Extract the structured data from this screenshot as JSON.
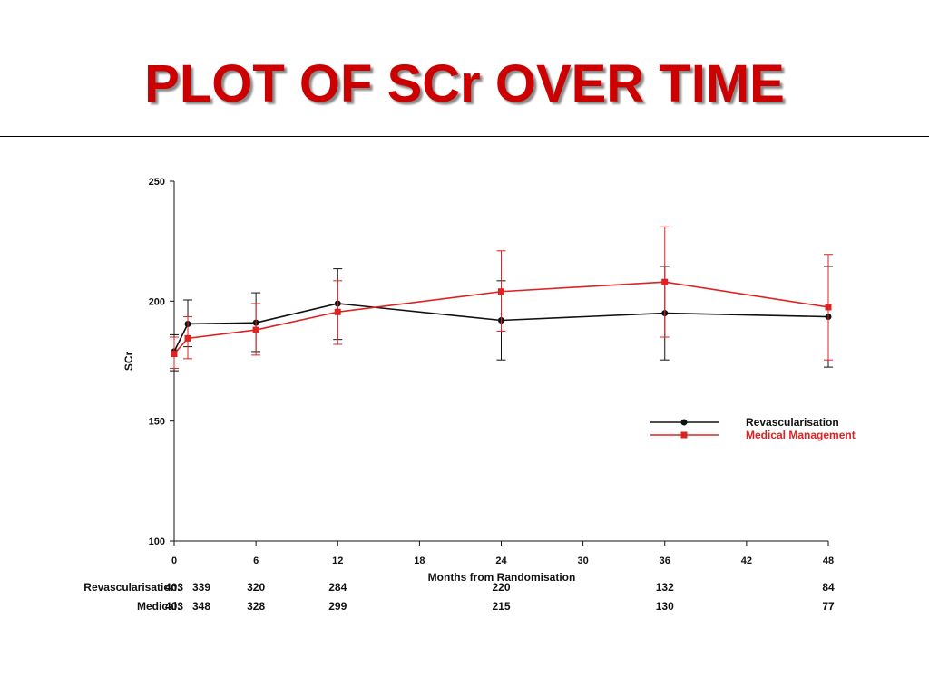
{
  "page": {
    "title": "PLOT OF SCr OVER TIME"
  },
  "chart_data": {
    "type": "line",
    "title": "",
    "xlabel": "Months from Randomisation",
    "ylabel": "SCr",
    "xlim": [
      0,
      48
    ],
    "ylim": [
      100,
      250
    ],
    "x_ticks": [
      0,
      6,
      12,
      18,
      24,
      30,
      36,
      42,
      48
    ],
    "y_ticks": [
      100,
      150,
      200,
      250
    ],
    "grid": false,
    "legend_position": "right",
    "series": [
      {
        "name": "Revascularisation",
        "color": "#111111",
        "marker": "circle",
        "x": [
          0,
          1,
          6,
          12,
          24,
          36,
          48
        ],
        "y": [
          179,
          190.5,
          191,
          199,
          192,
          195,
          193.5
        ],
        "err_low": [
          171,
          181,
          179,
          184,
          175.5,
          175.5,
          172.5
        ],
        "err_high": [
          186,
          200.5,
          203.5,
          213.5,
          208.5,
          214.5,
          214.5
        ]
      },
      {
        "name": "Medical Management",
        "color": "#dd2222",
        "marker": "square",
        "x": [
          0,
          1,
          6,
          12,
          24,
          36,
          48
        ],
        "y": [
          178,
          184.5,
          188,
          195.5,
          204,
          208,
          197.5
        ],
        "err_low": [
          172,
          176,
          177.5,
          182,
          187.5,
          185,
          175.5
        ],
        "err_high": [
          185,
          193.5,
          199,
          208.5,
          221,
          231,
          219.5
        ]
      }
    ],
    "at_risk": {
      "rows": [
        {
          "label": "Revascularisation:",
          "x": [
            0,
            1,
            6,
            12,
            24,
            36,
            48
          ],
          "values": [
            "403",
            "339",
            "320",
            "284",
            "220",
            "132",
            "84"
          ]
        },
        {
          "label": "Medical:",
          "x": [
            0,
            1,
            6,
            12,
            24,
            36,
            48
          ],
          "values": [
            "403",
            "348",
            "328",
            "299",
            "215",
            "130",
            "77"
          ]
        }
      ]
    }
  }
}
